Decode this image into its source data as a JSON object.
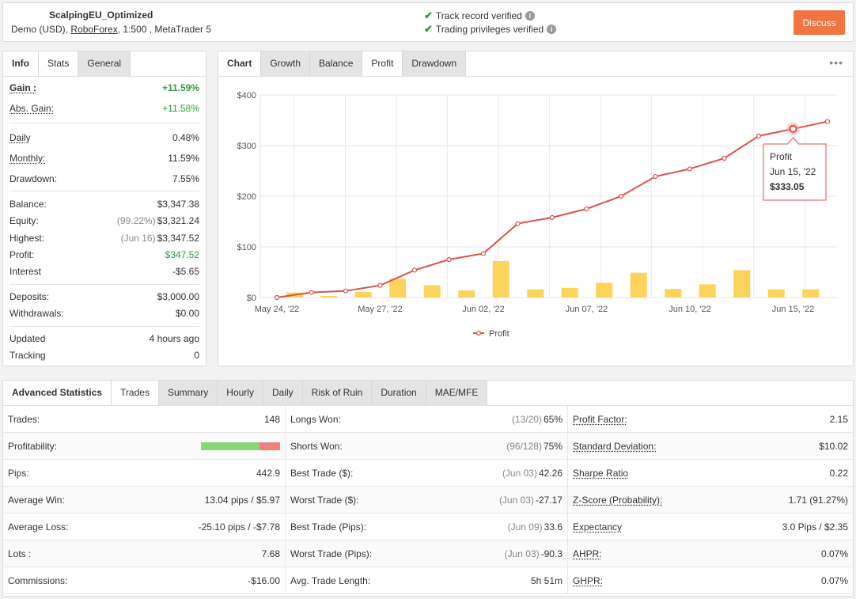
{
  "account": {
    "name": "ScalpingEU_Optimized",
    "type": "Demo (USD),",
    "broker": "RoboForex",
    "details": ", 1:500 , MetaTrader 5"
  },
  "verification": {
    "track": "Track record verified",
    "trading": "Trading privileges verified"
  },
  "discuss_label": "Discuss",
  "info_tabs": [
    "Info",
    "Stats",
    "General"
  ],
  "stats": {
    "gain": {
      "label": "Gain :",
      "value": "+11.59%"
    },
    "abs_gain": {
      "label": "Abs. Gain:",
      "value": "+11.58%"
    },
    "daily": {
      "label": "Daily",
      "value": "0.48%"
    },
    "monthly": {
      "label": "Monthly:",
      "value": "11.59%"
    },
    "drawdown": {
      "label": "Drawdown:",
      "value": "7.55%"
    },
    "balance": {
      "label": "Balance:",
      "value": "$3,347.38"
    },
    "equity": {
      "label": "Equity:",
      "pre": "(99.22%)",
      "value": "$3,321.24"
    },
    "highest": {
      "label": "Highest:",
      "pre": "(Jun 16)",
      "value": "$3,347.52"
    },
    "profit": {
      "label": "Profit:",
      "value": "$347.52"
    },
    "interest": {
      "label": "Interest",
      "value": "-$5.65"
    },
    "deposits": {
      "label": "Deposits:",
      "value": "$3,000.00"
    },
    "withdrawals": {
      "label": "Withdrawals:",
      "value": "$0.00"
    },
    "updated": {
      "label": "Updated",
      "value": "4 hours ago"
    },
    "tracking": {
      "label": "Tracking",
      "value": "0"
    }
  },
  "chart_tabs": [
    "Chart",
    "Growth",
    "Balance",
    "Profit",
    "Drawdown"
  ],
  "chart_data": {
    "type": "line",
    "yticks": [
      "$400",
      "$300",
      "$200",
      "$100",
      "$0"
    ],
    "ylim": [
      0,
      400
    ],
    "xticks": [
      "May 24, '22",
      "May 27, '22",
      "Jun 02, '22",
      "Jun 07, '22",
      "Jun 10, '22",
      "Jun 15, '22"
    ],
    "series": [
      {
        "name": "Profit",
        "type": "line",
        "color": "#d9534f",
        "values": [
          0,
          10,
          13,
          24,
          54,
          75,
          87,
          146,
          158,
          175,
          200,
          239,
          254,
          275,
          319,
          333.05,
          347.52
        ]
      },
      {
        "type": "bar",
        "color": "#fcd35b",
        "values": [
          10,
          3,
          11,
          37,
          24,
          14,
          72,
          16,
          19,
          29,
          49,
          17,
          26,
          54,
          16,
          16
        ]
      }
    ],
    "tooltip": {
      "title": "Profit",
      "date": "Jun 15, '22",
      "value": "$333.05",
      "index": 15
    },
    "legend": "bottom"
  },
  "adv_tabs": [
    "Advanced Statistics",
    "Trades",
    "Summary",
    "Hourly",
    "Daily",
    "Risk of Ruin",
    "Duration",
    "MAE/MFE"
  ],
  "trades": {
    "col1": [
      {
        "label": "Trades:",
        "value": "148"
      },
      {
        "label": "Profitability:",
        "bar": {
          "won": 0.74,
          "lost": 0.26
        }
      },
      {
        "label": "Pips:",
        "value": "442.9"
      },
      {
        "label": "Average Win:",
        "value": "13.04 pips / $5.97"
      },
      {
        "label": "Average Loss:",
        "value": "-25.10 pips / -$7.78"
      },
      {
        "label": "Lots :",
        "value": "7.68"
      },
      {
        "label": "Commissions:",
        "value": "-$16.00"
      }
    ],
    "col2": [
      {
        "label": "Longs Won:",
        "pre": "(13/20)",
        "value": "65%"
      },
      {
        "label": "Shorts Won:",
        "pre": "(96/128)",
        "value": "75%"
      },
      {
        "label": "Best Trade ($):",
        "pre": "(Jun 03)",
        "value": "42.26"
      },
      {
        "label": "Worst Trade ($):",
        "pre": "(Jun 03)",
        "value": "-27.17"
      },
      {
        "label": "Best Trade (Pips):",
        "pre": "(Jun 09)",
        "value": "33.6"
      },
      {
        "label": "Worst Trade (Pips):",
        "pre": "(Jun 03)",
        "value": "-90.3"
      },
      {
        "label": "Avg. Trade Length:",
        "value": "5h 51m"
      }
    ],
    "col3": [
      {
        "label": "Profit Factor:",
        "value": "2.15"
      },
      {
        "label": "Standard Deviation:",
        "value": "$10.02"
      },
      {
        "label": "Sharpe Ratio",
        "value": "0.22"
      },
      {
        "label": "Z-Score (Probability):",
        "value": "1.71 (91.27%)"
      },
      {
        "label": "Expectancy",
        "value": "3.0 Pips / $2.35"
      },
      {
        "label": "AHPR:",
        "value": "0.07%"
      },
      {
        "label": "GHPR:",
        "value": "0.07%"
      }
    ]
  }
}
